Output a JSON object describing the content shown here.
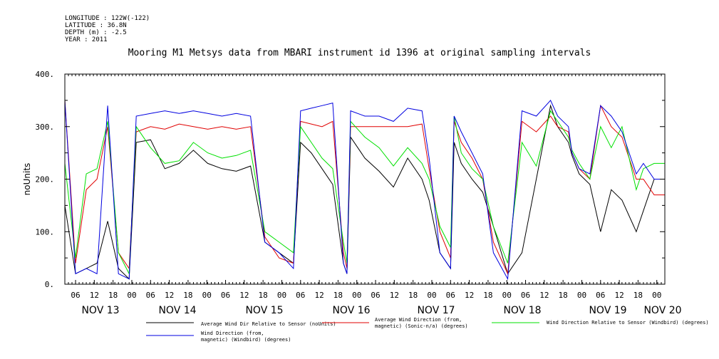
{
  "header": {
    "longitude": "LONGITUDE : 122W(-122)",
    "latitude": "LATITUDE : 36.8N",
    "depth": "DEPTH (m) : -2.5",
    "year": "YEAR : 2011"
  },
  "title": "Mooring M1 Metsys data from MBARI instrument id 1396 at original sampling intervals",
  "colors": {
    "black": "#000000",
    "red": "#e00000",
    "green": "#00e000",
    "blue": "#0000e0"
  },
  "chart_data": {
    "type": "line",
    "title": "Mooring M1 Metsys data from MBARI instrument id 1396 at original sampling intervals",
    "ylabel": "noUnits",
    "ylim": [
      0,
      400
    ],
    "yticks": [
      "0.",
      "100.",
      "200.",
      "300.",
      "400."
    ],
    "x_hour_labels": [
      "06",
      "12",
      "18",
      "00",
      "06",
      "12",
      "18",
      "00",
      "06",
      "12",
      "18",
      "00",
      "06",
      "12",
      "18",
      "00",
      "06",
      "12",
      "18",
      "00",
      "06",
      "12",
      "18",
      "00",
      "06",
      "12",
      "18",
      "00",
      "06",
      "12",
      "18",
      "00"
    ],
    "x_day_labels": [
      "NOV 13",
      "NOV 14",
      "NOV 15",
      "NOV 16",
      "NOV 17",
      "NOV 18",
      "NOV 19",
      "NOV 20"
    ],
    "xlim_hours": [
      0,
      168
    ],
    "series": [
      {
        "name": "Average Wind Dir Relative to Sensor (noUnits)",
        "color": "#000000",
        "x": [
          0,
          3,
          6,
          9,
          12,
          15,
          18,
          20,
          24,
          28,
          32,
          36,
          40,
          44,
          48,
          52,
          56,
          60,
          64,
          66,
          69,
          72,
          75,
          78,
          79,
          80,
          84,
          88,
          92,
          96,
          100,
          102,
          105,
          108,
          109,
          111,
          114,
          117,
          120,
          124,
          128,
          132,
          136,
          138,
          141,
          142,
          144,
          147,
          150,
          153,
          156,
          160,
          162,
          165,
          168
        ],
        "y": [
          150,
          20,
          30,
          40,
          120,
          30,
          10,
          270,
          275,
          220,
          230,
          255,
          230,
          220,
          215,
          225,
          80,
          60,
          40,
          270,
          250,
          220,
          190,
          40,
          20,
          280,
          240,
          215,
          185,
          240,
          200,
          160,
          60,
          30,
          270,
          230,
          200,
          175,
          110,
          20,
          60,
          200,
          340,
          300,
          270,
          245,
          210,
          190,
          100,
          180,
          160,
          100,
          140,
          200,
          200
        ]
      },
      {
        "name": "Average Wind Direction (from, magnetic) (Sonic-n/a) (degrees)",
        "color": "#e00000",
        "x": [
          0,
          3,
          6,
          9,
          12,
          15,
          18,
          20,
          24,
          28,
          32,
          36,
          40,
          44,
          48,
          52,
          56,
          60,
          64,
          66,
          69,
          72,
          75,
          78,
          79,
          80,
          84,
          88,
          92,
          96,
          100,
          102,
          105,
          108,
          109,
          111,
          114,
          117,
          120,
          124,
          128,
          132,
          136,
          138,
          141,
          142,
          144,
          147,
          150,
          153,
          156,
          160,
          162,
          165,
          168
        ],
        "y": [
          350,
          40,
          180,
          200,
          300,
          60,
          30,
          290,
          300,
          295,
          305,
          300,
          295,
          300,
          295,
          300,
          90,
          50,
          40,
          310,
          305,
          300,
          310,
          60,
          30,
          300,
          300,
          300,
          300,
          300,
          305,
          220,
          100,
          50,
          310,
          270,
          240,
          200,
          80,
          20,
          310,
          290,
          320,
          300,
          290,
          250,
          220,
          200,
          340,
          300,
          280,
          200,
          200,
          170,
          170
        ]
      },
      {
        "name": "Wind Direction Relative to Sensor (Windbird) (degrees)",
        "color": "#00e000",
        "x": [
          0,
          3,
          6,
          9,
          12,
          15,
          18,
          20,
          24,
          28,
          32,
          36,
          40,
          44,
          48,
          52,
          56,
          60,
          64,
          66,
          69,
          72,
          75,
          78,
          79,
          80,
          84,
          88,
          92,
          96,
          100,
          102,
          105,
          108,
          109,
          111,
          114,
          117,
          120,
          124,
          128,
          132,
          136,
          138,
          141,
          142,
          144,
          147,
          150,
          153,
          156,
          160,
          162,
          165,
          168
        ],
        "y": [
          230,
          50,
          210,
          220,
          310,
          60,
          20,
          300,
          260,
          230,
          235,
          270,
          250,
          240,
          245,
          255,
          100,
          80,
          60,
          300,
          270,
          240,
          220,
          80,
          40,
          310,
          280,
          260,
          225,
          260,
          230,
          200,
          110,
          70,
          320,
          250,
          220,
          200,
          110,
          40,
          270,
          225,
          330,
          310,
          280,
          255,
          230,
          200,
          300,
          260,
          300,
          180,
          220,
          230,
          230
        ]
      },
      {
        "name": "Wind Direction (from, magnetic) (Windbird) (degrees)",
        "color": "#0000e0",
        "x": [
          0,
          3,
          6,
          9,
          12,
          15,
          18,
          20,
          24,
          28,
          32,
          36,
          40,
          44,
          48,
          52,
          56,
          60,
          64,
          66,
          69,
          72,
          75,
          78,
          79,
          80,
          84,
          88,
          92,
          96,
          100,
          102,
          105,
          108,
          109,
          111,
          114,
          117,
          120,
          124,
          128,
          132,
          136,
          138,
          141,
          142,
          144,
          147,
          150,
          153,
          156,
          160,
          162,
          165,
          168
        ],
        "y": [
          350,
          20,
          30,
          20,
          340,
          20,
          10,
          320,
          325,
          330,
          325,
          330,
          325,
          320,
          325,
          320,
          80,
          60,
          30,
          330,
          335,
          340,
          345,
          40,
          20,
          330,
          320,
          320,
          310,
          335,
          330,
          240,
          60,
          30,
          320,
          290,
          250,
          210,
          60,
          10,
          330,
          320,
          350,
          320,
          300,
          250,
          220,
          210,
          340,
          320,
          290,
          210,
          230,
          200,
          200
        ]
      }
    ],
    "legend": [
      {
        "label": "Average Wind Dir Relative to Sensor (noUnits)",
        "color": "#000000"
      },
      {
        "label": "Average Wind Direction (from,\nmagnetic) (Sonic-n/a) (degrees)",
        "color": "#e00000"
      },
      {
        "label": "Wind Direction Relative to Sensor (Windbird) (degrees)",
        "color": "#00e000"
      },
      {
        "label": "Wind Direction (from,\nmagnetic) (Windbird) (degrees)",
        "color": "#0000e0"
      }
    ]
  }
}
